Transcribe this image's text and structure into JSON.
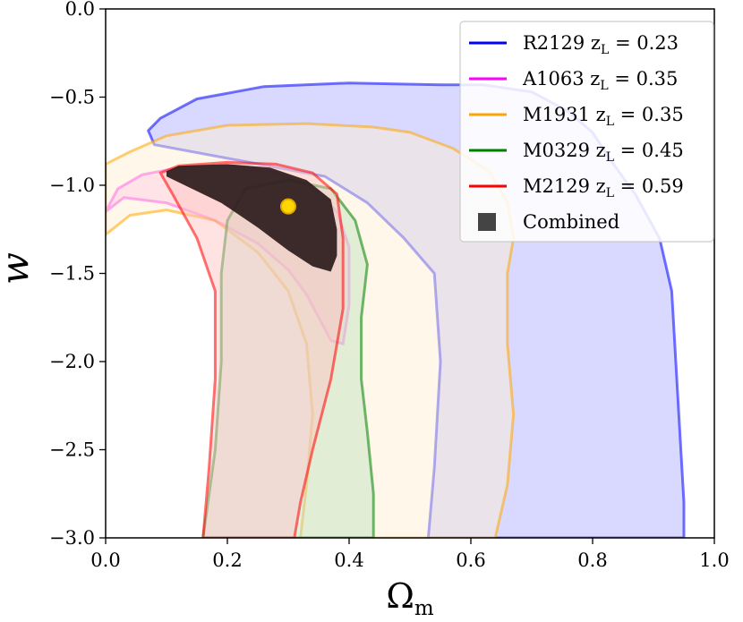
{
  "chart_data": {
    "type": "contour",
    "xlabel": "Ω",
    "xlabel_sub": "m",
    "ylabel": "w",
    "xlim": [
      0.0,
      1.0
    ],
    "ylim": [
      -3.0,
      0.0
    ],
    "x_ticks": [
      0.0,
      0.2,
      0.4,
      0.6,
      0.8,
      1.0
    ],
    "x_tick_labels": [
      "0.0",
      "0.2",
      "0.4",
      "0.6",
      "0.8",
      "1.0"
    ],
    "y_ticks": [
      0.0,
      -0.5,
      -1.0,
      -1.5,
      -2.0,
      -2.5,
      -3.0
    ],
    "y_tick_labels": [
      "0.0",
      "−0.5",
      "−1.0",
      "−1.5",
      "−2.0",
      "−2.5",
      "−3.0"
    ],
    "legend_position": "top-right",
    "series": [
      {
        "name": "R2129",
        "label_sub": "L",
        "label_value": "= 0.23",
        "color": "#0000ff",
        "fill": "#aaaaff",
        "contour": [
          [
            0.53,
            -3.0
          ],
          [
            0.54,
            -2.6
          ],
          [
            0.55,
            -2.0
          ],
          [
            0.54,
            -1.5
          ],
          [
            0.47,
            -1.2
          ],
          [
            0.37,
            -0.96
          ],
          [
            0.2,
            -0.86
          ],
          [
            0.09,
            -0.89
          ],
          [
            0.04,
            -0.85
          ],
          [
            0.05,
            -0.72
          ],
          [
            0.1,
            -0.65
          ],
          [
            0.2,
            -0.64
          ],
          [
            0.33,
            -0.65
          ],
          [
            0.4,
            -0.66
          ],
          [
            0.5,
            -0.69
          ],
          [
            0.6,
            -0.79
          ],
          [
            0.66,
            -0.88
          ],
          [
            0.67,
            -1.2
          ],
          [
            0.66,
            -1.6
          ],
          [
            0.66,
            -2.3
          ],
          [
            0.64,
            -3.0
          ],
          [
            0.64,
            -3.0
          ],
          [
            0.66,
            -2.4
          ],
          [
            0.66,
            -1.8
          ],
          [
            0.67,
            -1.4
          ],
          [
            0.7,
            -1.28
          ],
          [
            0.81,
            -1.3
          ],
          [
            0.88,
            -1.32
          ],
          [
            0.91,
            -1.4
          ],
          [
            0.93,
            -1.6
          ],
          [
            0.94,
            -2.2
          ],
          [
            0.95,
            -2.8
          ],
          [
            0.95,
            -3.0
          ],
          [
            0.53,
            -3.0
          ]
        ],
        "outer": [
          [
            0.53,
            -3.0
          ],
          [
            0.54,
            -2.6
          ],
          [
            0.55,
            -2.0
          ],
          [
            0.54,
            -1.5
          ],
          [
            0.49,
            -1.3
          ],
          [
            0.43,
            -1.1
          ],
          [
            0.36,
            -0.95
          ],
          [
            0.22,
            -0.86
          ],
          [
            0.08,
            -0.77
          ],
          [
            0.07,
            -0.69
          ],
          [
            0.09,
            -0.62
          ],
          [
            0.15,
            -0.51
          ],
          [
            0.26,
            -0.44
          ],
          [
            0.4,
            -0.42
          ],
          [
            0.55,
            -0.43
          ],
          [
            0.62,
            -0.43
          ],
          [
            0.7,
            -0.47
          ],
          [
            0.76,
            -0.58
          ],
          [
            0.8,
            -0.7
          ],
          [
            0.83,
            -0.86
          ],
          [
            0.87,
            -1.05
          ],
          [
            0.91,
            -1.3
          ],
          [
            0.93,
            -1.6
          ],
          [
            0.94,
            -2.2
          ],
          [
            0.95,
            -2.8
          ],
          [
            0.95,
            -3.0
          ]
        ]
      },
      {
        "name": "A1063",
        "label_sub": "L",
        "label_value": "= 0.35",
        "color": "#ff00ff",
        "fill": "#ffaaee",
        "outer": [
          [
            0.0,
            -1.15
          ],
          [
            0.02,
            -1.02
          ],
          [
            0.06,
            -0.94
          ],
          [
            0.12,
            -0.9
          ],
          [
            0.2,
            -0.89
          ],
          [
            0.28,
            -0.93
          ],
          [
            0.34,
            -1.02
          ],
          [
            0.38,
            -1.15
          ],
          [
            0.4,
            -1.35
          ],
          [
            0.4,
            -1.68
          ],
          [
            0.39,
            -1.9
          ],
          [
            0.37,
            -1.88
          ],
          [
            0.35,
            -1.75
          ],
          [
            0.33,
            -1.62
          ],
          [
            0.3,
            -1.48
          ],
          [
            0.25,
            -1.33
          ],
          [
            0.18,
            -1.2
          ],
          [
            0.1,
            -1.1
          ],
          [
            0.03,
            -1.07
          ],
          [
            0.0,
            -1.15
          ]
        ]
      },
      {
        "name": "M1931",
        "label_sub": "L",
        "label_value": "= 0.35",
        "color": "#ffa500",
        "fill": "#fff0d0",
        "outer": [
          [
            0.0,
            -0.88
          ],
          [
            0.04,
            -0.81
          ],
          [
            0.1,
            -0.72
          ],
          [
            0.2,
            -0.66
          ],
          [
            0.33,
            -0.65
          ],
          [
            0.44,
            -0.67
          ],
          [
            0.5,
            -0.7
          ],
          [
            0.57,
            -0.79
          ],
          [
            0.63,
            -0.92
          ],
          [
            0.66,
            -1.1
          ],
          [
            0.67,
            -1.3
          ],
          [
            0.66,
            -1.5
          ],
          [
            0.66,
            -1.9
          ],
          [
            0.67,
            -2.3
          ],
          [
            0.66,
            -2.7
          ],
          [
            0.64,
            -3.0
          ],
          [
            0.32,
            -3.0
          ],
          [
            0.33,
            -2.7
          ],
          [
            0.34,
            -2.3
          ],
          [
            0.33,
            -1.9
          ],
          [
            0.3,
            -1.6
          ],
          [
            0.25,
            -1.38
          ],
          [
            0.18,
            -1.2
          ],
          [
            0.1,
            -1.14
          ],
          [
            0.04,
            -1.17
          ],
          [
            0.0,
            -1.28
          ],
          [
            0.0,
            -0.88
          ]
        ]
      },
      {
        "name": "M0329",
        "label_sub": "L",
        "label_value": "= 0.45",
        "color": "#008000",
        "fill": "#bfe0bf",
        "outer": [
          [
            0.16,
            -3.0
          ],
          [
            0.18,
            -2.5
          ],
          [
            0.19,
            -2.0
          ],
          [
            0.19,
            -1.5
          ],
          [
            0.2,
            -1.2
          ],
          [
            0.23,
            -1.02
          ],
          [
            0.3,
            -0.97
          ],
          [
            0.37,
            -1.02
          ],
          [
            0.41,
            -1.2
          ],
          [
            0.43,
            -1.45
          ],
          [
            0.42,
            -1.75
          ],
          [
            0.42,
            -2.1
          ],
          [
            0.43,
            -2.4
          ],
          [
            0.44,
            -2.75
          ],
          [
            0.44,
            -3.0
          ],
          [
            0.16,
            -3.0
          ]
        ]
      },
      {
        "name": "M2129",
        "label_sub": "L",
        "label_value": "= 0.59",
        "color": "#ff0000",
        "fill": "#ffc0c0",
        "outer": [
          [
            0.16,
            -3.0
          ],
          [
            0.17,
            -2.6
          ],
          [
            0.18,
            -2.1
          ],
          [
            0.18,
            -1.6
          ],
          [
            0.15,
            -1.3
          ],
          [
            0.11,
            -1.05
          ],
          [
            0.09,
            -0.93
          ],
          [
            0.12,
            -0.89
          ],
          [
            0.2,
            -0.87
          ],
          [
            0.28,
            -0.88
          ],
          [
            0.34,
            -0.93
          ],
          [
            0.38,
            -1.05
          ],
          [
            0.39,
            -1.3
          ],
          [
            0.39,
            -1.7
          ],
          [
            0.37,
            -2.1
          ],
          [
            0.34,
            -2.5
          ],
          [
            0.32,
            -2.8
          ],
          [
            0.31,
            -3.0
          ],
          [
            0.16,
            -3.0
          ]
        ]
      },
      {
        "name": "Combined",
        "color": "#2b1b1b",
        "fill": "#2b1b1b",
        "outer": [
          [
            0.1,
            -0.92
          ],
          [
            0.12,
            -0.89
          ],
          [
            0.2,
            -0.88
          ],
          [
            0.27,
            -0.9
          ],
          [
            0.33,
            -0.97
          ],
          [
            0.37,
            -1.08
          ],
          [
            0.38,
            -1.25
          ],
          [
            0.38,
            -1.4
          ],
          [
            0.37,
            -1.49
          ],
          [
            0.34,
            -1.46
          ],
          [
            0.3,
            -1.37
          ],
          [
            0.25,
            -1.24
          ],
          [
            0.19,
            -1.1
          ],
          [
            0.13,
            -1.0
          ],
          [
            0.1,
            -0.95
          ],
          [
            0.1,
            -0.92
          ]
        ]
      }
    ],
    "best_fit": {
      "x": 0.3,
      "y": -1.12,
      "color": "#ffd700"
    }
  }
}
